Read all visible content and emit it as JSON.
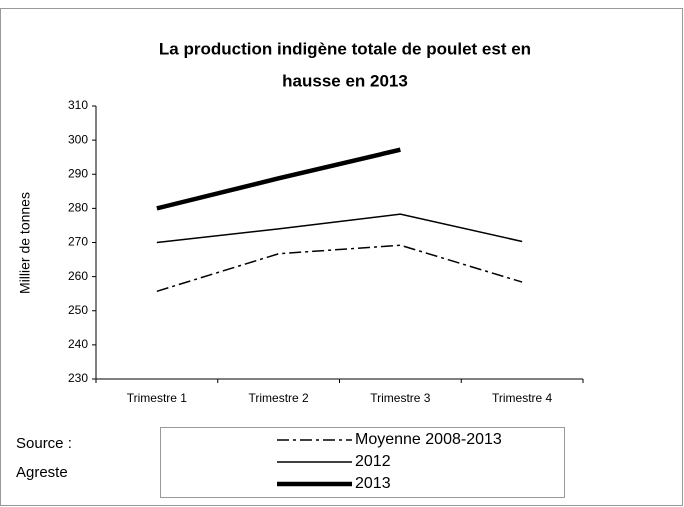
{
  "chart_data": {
    "type": "line",
    "title_lines": [
      "La production indigène totale de poulet est en",
      "hausse en 2013"
    ],
    "y_label": "Millier de tonnes",
    "source_lines": [
      "Source :",
      "Agreste"
    ],
    "categories": [
      "Trimestre 1",
      "Trimestre 2",
      "Trimestre 3",
      "Trimestre 4"
    ],
    "series": [
      {
        "name": "Moyenne 2008-2013",
        "color": "#000000",
        "dash": "dashdot",
        "width": 1.5,
        "values": [
          255.7,
          266.7,
          269.2,
          258.4
        ]
      },
      {
        "name": "2012",
        "color": "#000000",
        "dash": "solid",
        "width": 1.5,
        "values": [
          270,
          274,
          278.3,
          270.3
        ]
      },
      {
        "name": "2013",
        "color": "#000000",
        "dash": "solid",
        "width": 4.5,
        "values": [
          280,
          288.8,
          297.2,
          null
        ]
      }
    ],
    "ylim": [
      230,
      310
    ],
    "yticks": [
      230,
      240,
      250,
      260,
      270,
      280,
      290,
      300,
      310
    ],
    "grid": false
  }
}
